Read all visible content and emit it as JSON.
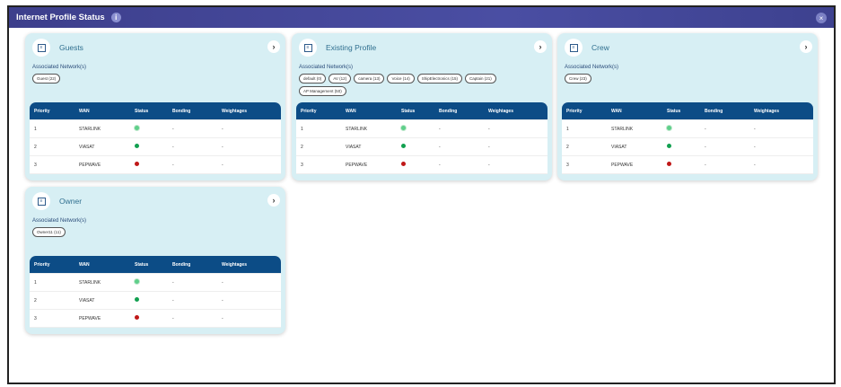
{
  "window": {
    "title": "Internet Profile Status",
    "info_icon": "i",
    "close_icon": "×"
  },
  "columns": [
    "Priority",
    "WAN",
    "Status",
    "Bonding",
    "Weightages"
  ],
  "status_colors": {
    "starlink": "#5fcf8a",
    "up": "#12a050",
    "down": "#c01818"
  },
  "profiles": [
    {
      "name": "Guests",
      "assoc_label": "Associated Network(s)",
      "networks": [
        "Guest (22)"
      ],
      "rows": [
        {
          "priority": "1",
          "wan": "STARLINK",
          "status": "starlink",
          "bonding": "-",
          "weightages": "-"
        },
        {
          "priority": "2",
          "wan": "VIASAT",
          "status": "up",
          "bonding": "-",
          "weightages": "-"
        },
        {
          "priority": "3",
          "wan": "PEPWAVE",
          "status": "down",
          "bonding": "-",
          "weightages": "-"
        }
      ]
    },
    {
      "name": "Existing Profile",
      "assoc_label": "Associated Network(s)",
      "networks": [
        "default (0)",
        "AV (12)",
        "camera (13)",
        "Voice (14)",
        "ShipElectronics (15)",
        "Captain (21)",
        "AP Management (50)"
      ],
      "rows": [
        {
          "priority": "1",
          "wan": "STARLINK",
          "status": "starlink",
          "bonding": "-",
          "weightages": "-"
        },
        {
          "priority": "2",
          "wan": "VIASAT",
          "status": "up",
          "bonding": "-",
          "weightages": "-"
        },
        {
          "priority": "3",
          "wan": "PEPWAVE",
          "status": "down",
          "bonding": "-",
          "weightages": "-"
        }
      ]
    },
    {
      "name": "Crew",
      "assoc_label": "Associated Network(s)",
      "networks": [
        "Crew (23)"
      ],
      "rows": [
        {
          "priority": "1",
          "wan": "STARLINK",
          "status": "starlink",
          "bonding": "-",
          "weightages": "-"
        },
        {
          "priority": "2",
          "wan": "VIASAT",
          "status": "up",
          "bonding": "-",
          "weightages": "-"
        },
        {
          "priority": "3",
          "wan": "PEPWAVE",
          "status": "down",
          "bonding": "-",
          "weightages": "-"
        }
      ]
    },
    {
      "name": "Owner",
      "assoc_label": "Associated Network(s)",
      "networks": [
        "Owner11 (11)"
      ],
      "rows": [
        {
          "priority": "1",
          "wan": "STARLINK",
          "status": "starlink",
          "bonding": "-",
          "weightages": "-"
        },
        {
          "priority": "2",
          "wan": "VIASAT",
          "status": "up",
          "bonding": "-",
          "weightages": "-"
        },
        {
          "priority": "3",
          "wan": "PEPWAVE",
          "status": "down",
          "bonding": "-",
          "weightages": "-"
        }
      ]
    }
  ]
}
